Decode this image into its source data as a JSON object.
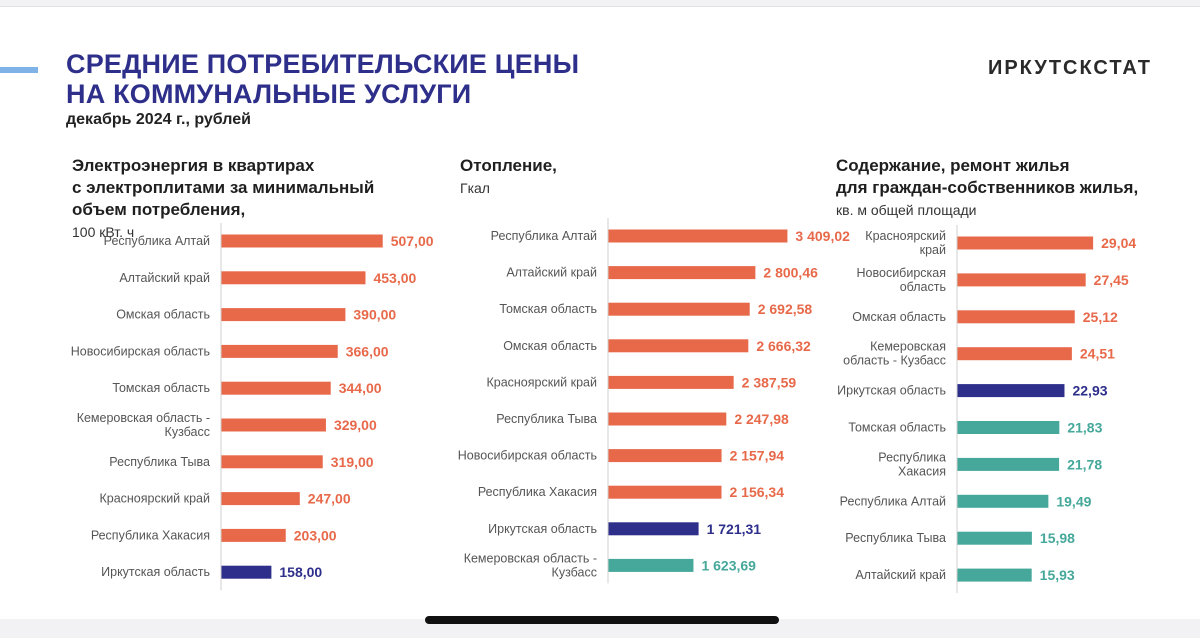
{
  "header": {
    "title_line1": "СРЕДНИЕ ПОТРЕБИТЕЛЬСКИЕ ЦЕНЫ",
    "title_line2": "НА КОММУНАЛЬНЫЕ УСЛУГИ",
    "subtitle": "декабрь 2024 г., рублей",
    "brand": "ИРКУТСКСТАТ"
  },
  "colors": {
    "orange": "#e8694a",
    "navy": "#2e2f8a",
    "teal": "#45a89a"
  },
  "chart_data": [
    {
      "type": "bar",
      "orientation": "horizontal",
      "title_lines": [
        "Электроэнергия в квартирах",
        "с электроплитами за минимальный",
        "объем потребления,"
      ],
      "unit": "100 кВт. ч",
      "categories": [
        [
          "Республика Алтай"
        ],
        [
          "Алтайский край"
        ],
        [
          "Омская область"
        ],
        [
          "Новосибирская область"
        ],
        [
          "Томская область"
        ],
        [
          "Кемеровская область -",
          "Кузбасс"
        ],
        [
          "Республика Тыва"
        ],
        [
          "Красноярский край"
        ],
        [
          "Республика Хакасия"
        ],
        [
          "Иркутская область"
        ]
      ],
      "values": [
        507.0,
        453.0,
        390.0,
        366.0,
        344.0,
        329.0,
        319.0,
        247.0,
        203.0,
        158.0
      ],
      "value_labels": [
        "507,00",
        "453,00",
        "390,00",
        "366,00",
        "344,00",
        "329,00",
        "319,00",
        "247,00",
        "203,00",
        "158,00"
      ],
      "bar_colors": [
        "orange",
        "orange",
        "orange",
        "orange",
        "orange",
        "orange",
        "orange",
        "orange",
        "orange",
        "navy"
      ],
      "xlim": [
        0,
        580
      ]
    },
    {
      "type": "bar",
      "orientation": "horizontal",
      "title_lines": [
        "Отопление,"
      ],
      "unit": "Гкал",
      "categories": [
        [
          "Республика Алтай"
        ],
        [
          "Алтайский край"
        ],
        [
          "Томская область"
        ],
        [
          "Омская область"
        ],
        [
          "Красноярский край"
        ],
        [
          "Республика Тыва"
        ],
        [
          "Новосибирская область"
        ],
        [
          "Республика Хакасия"
        ],
        [
          "Иркутская область"
        ],
        [
          "Кемеровская область -",
          "Кузбасс"
        ]
      ],
      "values": [
        3409.02,
        2800.46,
        2692.58,
        2666.32,
        2387.59,
        2247.98,
        2157.94,
        2156.34,
        1721.31,
        1623.69
      ],
      "value_labels": [
        "3 409,02",
        "2 800,46",
        "2 692,58",
        "2 666,32",
        "2 387,59",
        "2 247,98",
        "2 157,94",
        "2 156,34",
        "1 721,31",
        "1 623,69"
      ],
      "bar_colors": [
        "orange",
        "orange",
        "orange",
        "orange",
        "orange",
        "orange",
        "orange",
        "orange",
        "navy",
        "teal"
      ],
      "xlim": [
        0,
        3800
      ]
    },
    {
      "type": "bar",
      "orientation": "horizontal",
      "title_lines": [
        "Содержание, ремонт жилья",
        "для граждан-собственников жилья,"
      ],
      "unit": "кв. м общей площади",
      "categories": [
        [
          "Красноярский",
          "край"
        ],
        [
          "Новосибирская",
          "область"
        ],
        [
          "Омская область"
        ],
        [
          "Кемеровская",
          "область - Кузбасс"
        ],
        [
          "Иркутская область"
        ],
        [
          "Томская область"
        ],
        [
          "Республика",
          "Хакасия"
        ],
        [
          "Республика Алтай"
        ],
        [
          "Республика Тыва"
        ],
        [
          "Алтайский край"
        ]
      ],
      "values": [
        29.04,
        27.45,
        25.12,
        24.51,
        22.93,
        21.83,
        21.78,
        19.49,
        15.98,
        15.93
      ],
      "value_labels": [
        "29,04",
        "27,45",
        "25,12",
        "24,51",
        "22,93",
        "21,83",
        "21,78",
        "19,49",
        "15,98",
        "15,93"
      ],
      "bar_colors": [
        "orange",
        "orange",
        "orange",
        "orange",
        "navy",
        "teal",
        "teal",
        "teal",
        "teal",
        "teal"
      ],
      "xlim": [
        0,
        32
      ]
    }
  ]
}
